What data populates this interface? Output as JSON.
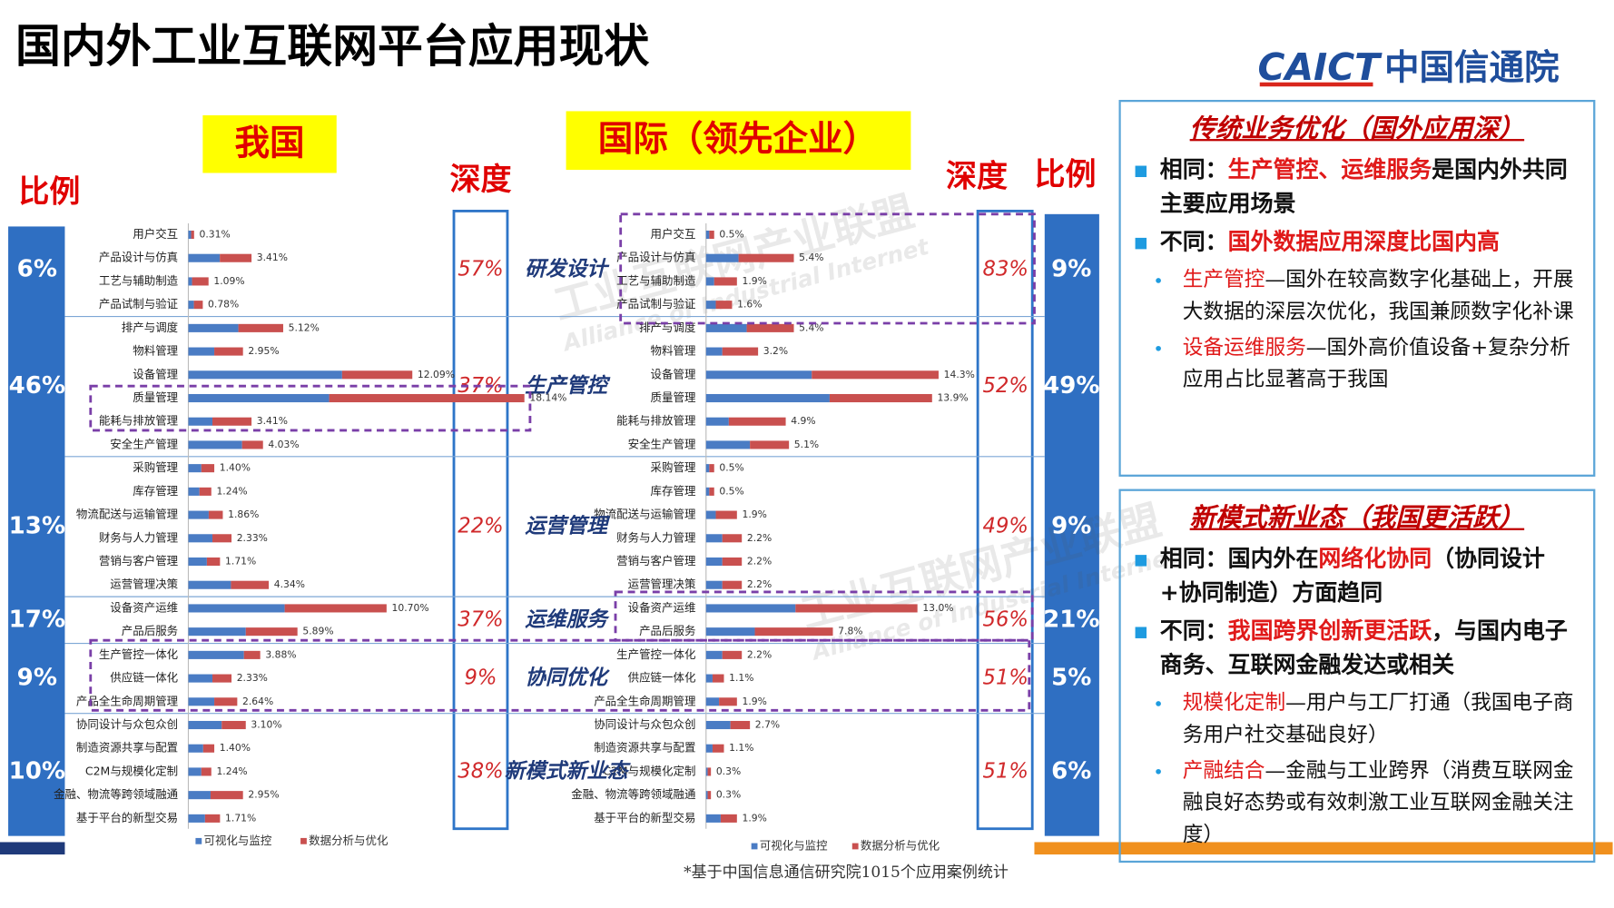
{
  "title": "国内外工业互联网平台应用现状",
  "logo": {
    "en": "CAICT",
    "cn": "中国信通院"
  },
  "watermark": {
    "cn": "工业互联网产业联盟",
    "en": "Alliance of Industrial Internet"
  },
  "headers": {
    "domestic": "我国",
    "international": "国际（领先企业）",
    "ratio": "比例",
    "depth": "深度"
  },
  "groups": [
    {
      "name": "研发设计",
      "cn_ratio": "6%",
      "cn_depth": "57%",
      "intl_depth": "83%",
      "intl_ratio": "9%"
    },
    {
      "name": "生产管控",
      "cn_ratio": "46%",
      "cn_depth": "37%",
      "intl_depth": "52%",
      "intl_ratio": "49%"
    },
    {
      "name": "运营管理",
      "cn_ratio": "13%",
      "cn_depth": "22%",
      "intl_depth": "49%",
      "intl_ratio": "9%"
    },
    {
      "name": "运维服务",
      "cn_ratio": "17%",
      "cn_depth": "37%",
      "intl_depth": "56%",
      "intl_ratio": "21%"
    },
    {
      "name": "协同优化",
      "cn_ratio": "9%",
      "cn_depth": "9%",
      "intl_depth": "51%",
      "intl_ratio": "5%"
    },
    {
      "name": "新模式新业态",
      "cn_ratio": "10%",
      "cn_depth": "38%",
      "intl_depth": "51%",
      "intl_ratio": "6%"
    }
  ],
  "chart_data": [
    {
      "type": "bar",
      "orientation": "horizontal",
      "stacked": true,
      "categories": [
        "用户交互",
        "产品设计与仿真",
        "工艺与辅助制造",
        "产品试制与验证",
        "排产与调度",
        "物料管理",
        "设备管理",
        "质量管理",
        "能耗与排放管理",
        "安全生产管理",
        "采购管理",
        "库存管理",
        "物流配送与运输管理",
        "财务与人力管理",
        "营销与客户管理",
        "运营管理决策",
        "设备资产运维",
        "产品后服务",
        "生产管控一体化",
        "供应链一体化",
        "产品全生命周期管理",
        "协同设计与众包众创",
        "制造资源共享与配置",
        "C2M与规模化定制",
        "金融、物流等跨领域融通",
        "基于平台的新型交易"
      ],
      "series": [
        {
          "name": "可视化与监控",
          "color": "#4a7cc4",
          "values": [
            0.15,
            1.7,
            0.2,
            0.3,
            2.7,
            1.4,
            8.3,
            7.6,
            1.3,
            2.9,
            0.7,
            0.6,
            1.1,
            1.3,
            1.0,
            2.3,
            5.2,
            3.1,
            3.0,
            1.3,
            1.4,
            1.8,
            0.8,
            0.7,
            1.2,
            0.9
          ]
        },
        {
          "name": "数据分析与优化",
          "color": "#c9504f",
          "values": [
            0.16,
            1.71,
            0.89,
            0.48,
            2.42,
            1.55,
            3.79,
            10.54,
            2.11,
            1.13,
            0.7,
            0.64,
            0.76,
            1.03,
            0.71,
            2.04,
            5.5,
            2.79,
            0.88,
            1.03,
            1.24,
            1.3,
            0.6,
            0.54,
            1.75,
            0.81
          ]
        }
      ],
      "totals": [
        0.31,
        3.41,
        1.09,
        0.78,
        5.12,
        2.95,
        12.09,
        18.14,
        3.41,
        4.03,
        1.4,
        1.24,
        1.86,
        2.33,
        1.71,
        4.34,
        10.7,
        5.89,
        3.88,
        2.33,
        2.64,
        3.1,
        1.4,
        1.24,
        2.95,
        1.71
      ],
      "total_labels": [
        "0.31%",
        "3.41%",
        "1.09%",
        "0.78%",
        "5.12%",
        "2.95%",
        "12.09%",
        "18.14%",
        "3.41%",
        "4.03%",
        "1.40%",
        "1.24%",
        "1.86%",
        "2.33%",
        "1.71%",
        "4.34%",
        "10.70%",
        "5.89%",
        "3.88%",
        "2.33%",
        "2.64%",
        "3.10%",
        "1.40%",
        "1.24%",
        "2.95%",
        "1.71%"
      ],
      "xlim": [
        0,
        20
      ]
    },
    {
      "type": "bar",
      "orientation": "horizontal",
      "stacked": true,
      "categories": [
        "用户交互",
        "产品设计与仿真",
        "工艺与辅助制造",
        "产品试制与验证",
        "排产与调度",
        "物料管理",
        "设备管理",
        "质量管理",
        "能耗与排放管理",
        "安全生产管理",
        "采购管理",
        "库存管理",
        "物流配送与运输管理",
        "财务与人力管理",
        "营销与客户管理",
        "运营管理决策",
        "设备资产运维",
        "产品后服务",
        "生产管控一体化",
        "供应链一体化",
        "产品全生命周期管理",
        "协同设计与众包众创",
        "制造资源共享与配置",
        "C2M与规模化定制",
        "金融、物流等跨领域融通",
        "基于平台的新型交易"
      ],
      "series": [
        {
          "name": "可视化与监控",
          "color": "#4a7cc4",
          "values": [
            0.2,
            2.0,
            0.5,
            0.6,
            2.5,
            1.0,
            6.5,
            7.6,
            1.4,
            2.7,
            0.2,
            0.2,
            0.6,
            1.0,
            1.0,
            1.0,
            5.5,
            3.0,
            1.0,
            0.4,
            0.8,
            1.5,
            0.4,
            0.1,
            0.1,
            0.9
          ]
        },
        {
          "name": "数据分析与优化",
          "color": "#c9504f",
          "values": [
            0.3,
            3.4,
            1.4,
            1.0,
            2.9,
            2.2,
            7.8,
            6.3,
            3.5,
            2.4,
            0.3,
            0.3,
            1.3,
            1.2,
            1.2,
            1.2,
            7.5,
            4.8,
            1.2,
            0.7,
            1.1,
            1.2,
            0.7,
            0.2,
            0.2,
            1.0
          ]
        }
      ],
      "totals": [
        0.5,
        5.4,
        1.9,
        1.6,
        5.4,
        3.2,
        14.3,
        13.9,
        4.9,
        5.1,
        0.5,
        0.5,
        1.9,
        2.2,
        2.2,
        2.2,
        13.0,
        7.8,
        2.2,
        1.1,
        1.9,
        2.7,
        1.1,
        0.3,
        0.3,
        1.9
      ],
      "total_labels": [
        "0.5%",
        "5.4%",
        "1.9%",
        "1.6%",
        "5.4%",
        "3.2%",
        "14.3%",
        "13.9%",
        "4.9%",
        "5.1%",
        "0.5%",
        "0.5%",
        "1.9%",
        "2.2%",
        "2.2%",
        "2.2%",
        "13.0%",
        "7.8%",
        "2.2%",
        "1.1%",
        "1.9%",
        "2.7%",
        "1.1%",
        "0.3%",
        "0.3%",
        "1.9%"
      ],
      "xlim": [
        0,
        20
      ]
    }
  ],
  "panels": [
    {
      "title": "传统业务优化（国外应用深）",
      "bullets": [
        {
          "lead": "相同：",
          "highlight": "生产管控、运维服务",
          "rest": "是国内外共同主要应用场景"
        },
        {
          "lead": "不同：",
          "highlight": "国外数据应用深度比国内高"
        }
      ],
      "subs": [
        {
          "highlight": "生产管控",
          "rest": "—国外在较高数字化基础上，开展大数据的深层次优化，我国兼顾数字化补课"
        },
        {
          "highlight": "设备运维服务",
          "rest": "—国外高价值设备+复杂分析应用占比显著高于我国"
        }
      ]
    },
    {
      "title": "新模式新业态（我国更活跃）",
      "bullets": [
        {
          "lead": "相同：国内外在",
          "highlight": "网络化协同",
          "rest": "（协同设计+协同制造）方面趋同"
        },
        {
          "lead": "不同：",
          "highlight": "我国跨界创新更活跃",
          "rest": "，与国内电子商务、互联网金融发达或相关"
        }
      ],
      "subs": [
        {
          "highlight": "规模化定制",
          "rest": "—用户与工厂打通（我国电子商务用户社交基础良好）"
        },
        {
          "highlight": "产融结合",
          "rest": "—金融与工业跨界（消费互联网金融良好态势或有效刺激工业互联网金融关注度）"
        }
      ]
    }
  ],
  "footnote": "*基于中国信息通信研究院1015个应用案例统计"
}
